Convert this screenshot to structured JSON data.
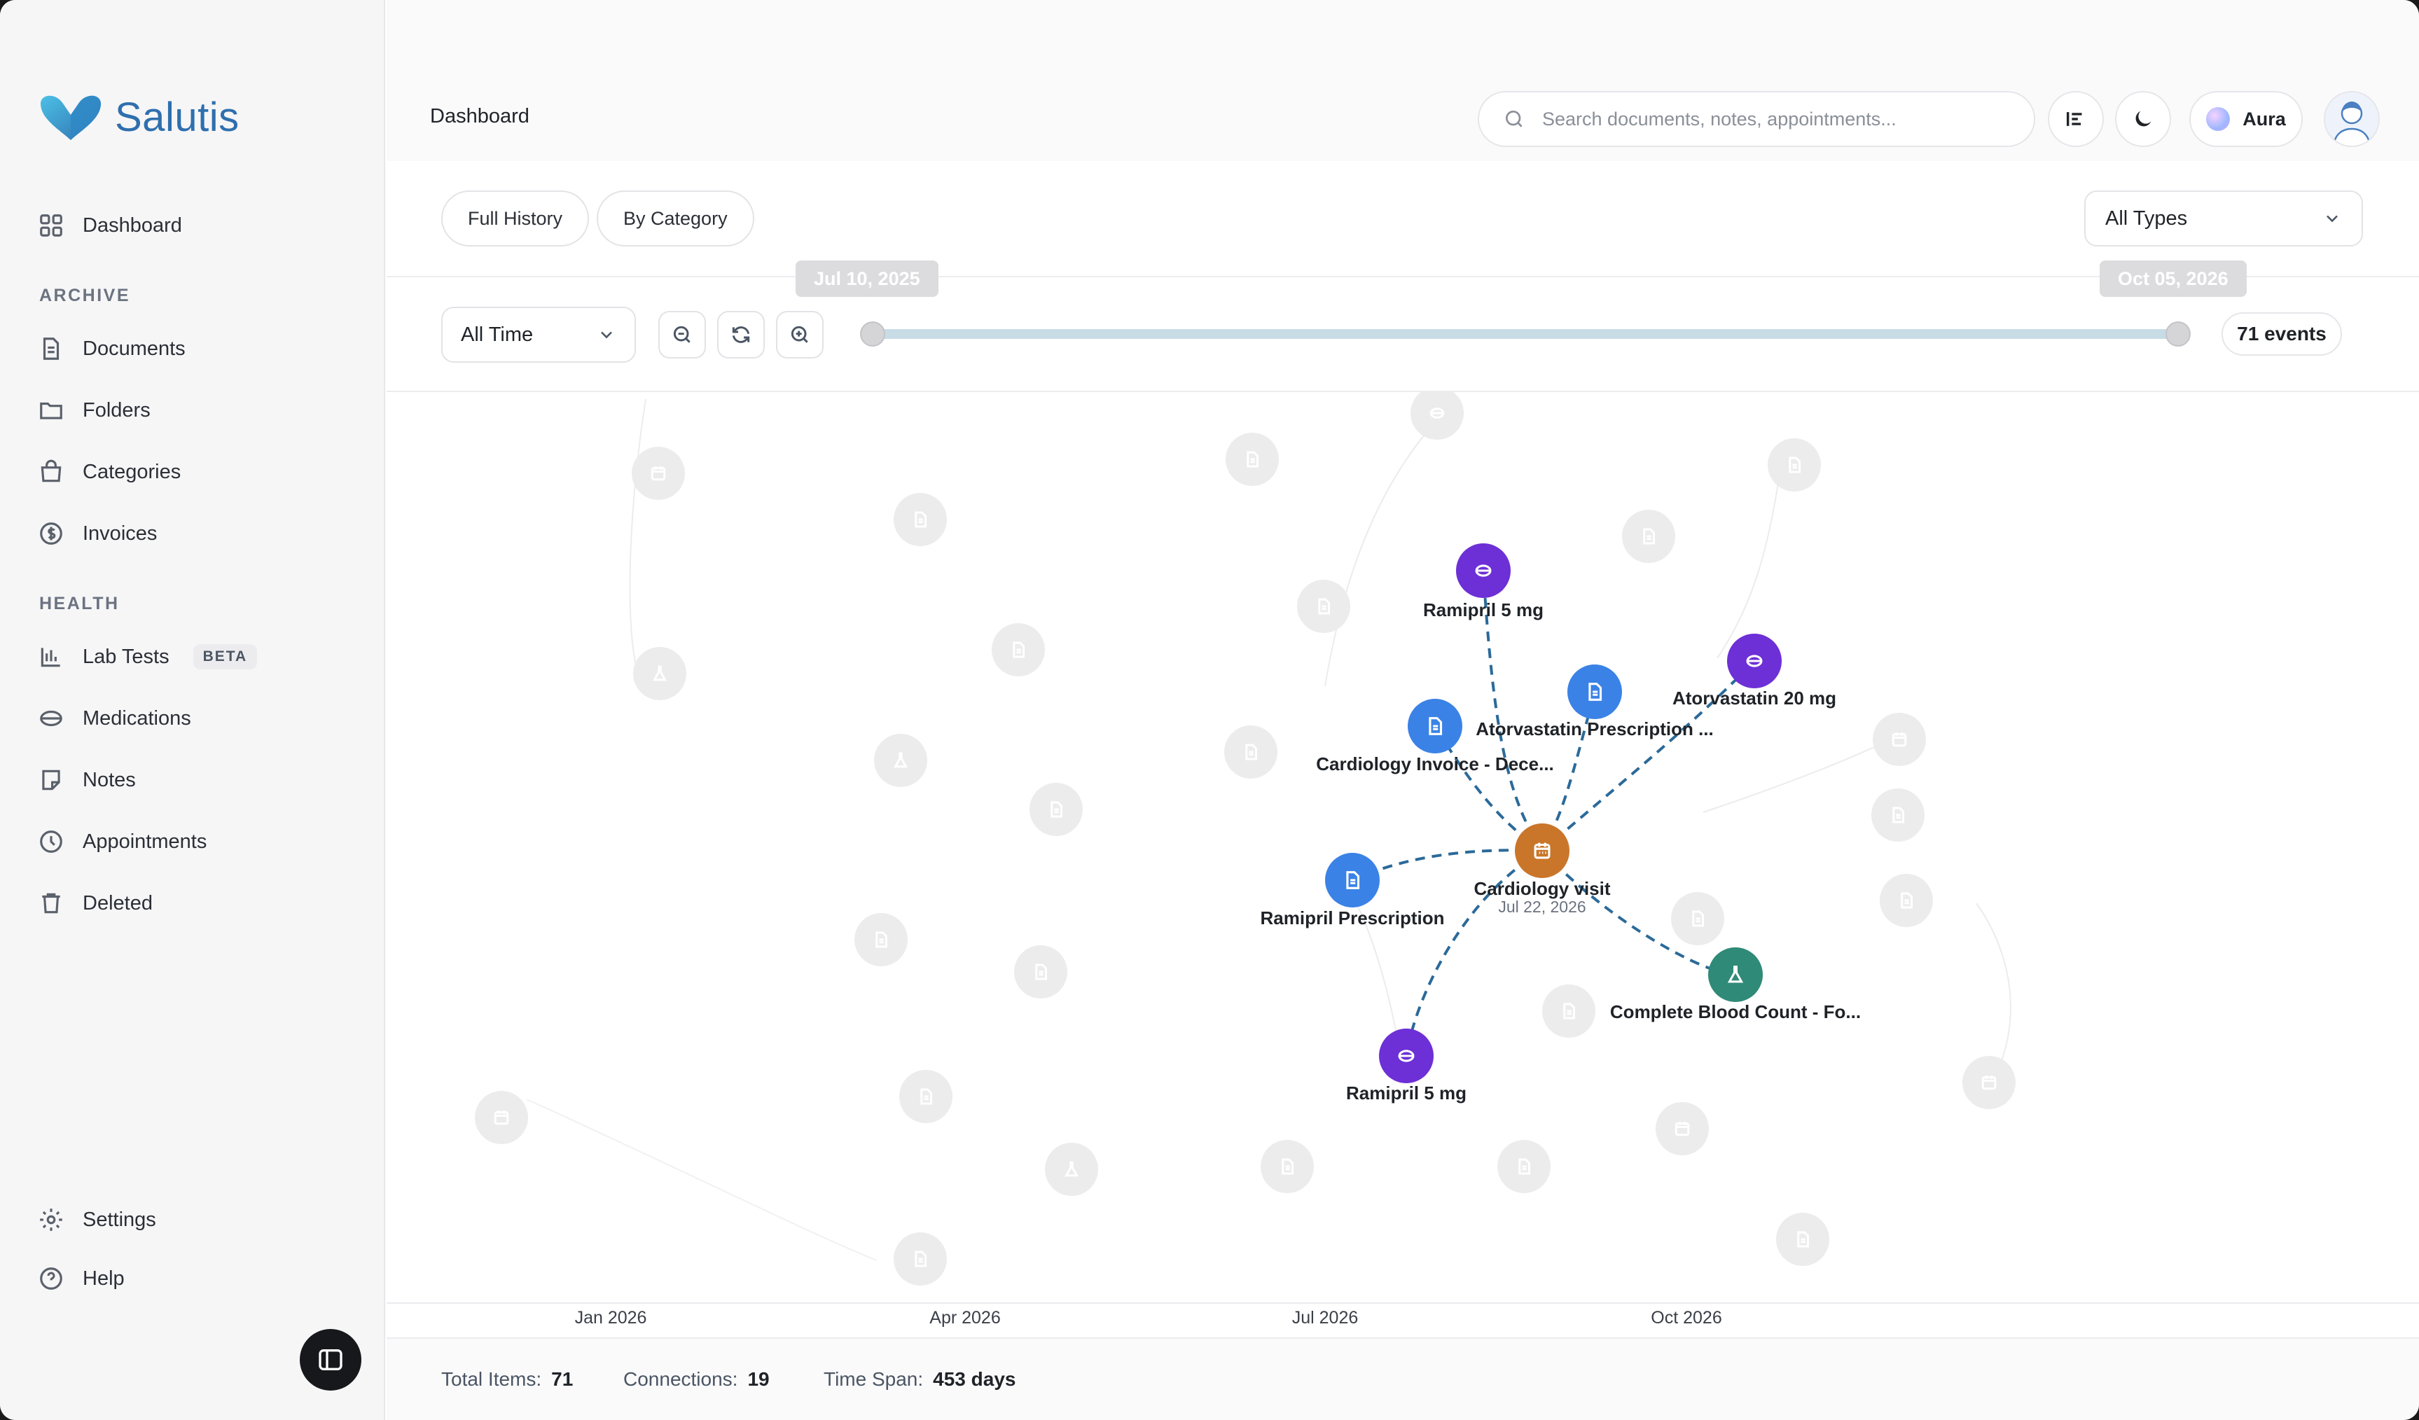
{
  "app": {
    "name": "Salutis"
  },
  "header": {
    "page_title": "Dashboard",
    "search_placeholder": "Search documents, notes, appointments...",
    "aura_label": "Aura"
  },
  "sidebar": {
    "top_items": [
      {
        "label": "Dashboard",
        "icon": "grid-icon"
      }
    ],
    "archive_label": "ARCHIVE",
    "archive_items": [
      {
        "label": "Documents",
        "icon": "document-icon"
      },
      {
        "label": "Folders",
        "icon": "folder-icon"
      },
      {
        "label": "Categories",
        "icon": "bag-icon"
      },
      {
        "label": "Invoices",
        "icon": "dollar-icon"
      }
    ],
    "health_label": "HEALTH",
    "health_items": [
      {
        "label": "Lab Tests",
        "icon": "chart-icon",
        "badge": "BETA"
      },
      {
        "label": "Medications",
        "icon": "pill-icon"
      },
      {
        "label": "Notes",
        "icon": "note-icon"
      },
      {
        "label": "Appointments",
        "icon": "clock-icon"
      },
      {
        "label": "Deleted",
        "icon": "trash-icon"
      }
    ],
    "bottom_items": [
      {
        "label": "Settings",
        "icon": "gear-icon"
      },
      {
        "label": "Help",
        "icon": "help-icon"
      }
    ]
  },
  "toolbar": {
    "full_history": "Full History",
    "by_category": "By Category",
    "types_select": "All Types",
    "time_select": "All Time",
    "range_start": "Jul 10, 2025",
    "range_end": "Oct 05, 2026",
    "events_count": "71 events"
  },
  "graph": {
    "center": {
      "label": "Cardiology visit",
      "date": "Jul 22, 2026",
      "type": "appointment",
      "color": "#c9762a"
    },
    "connected": [
      {
        "label": "Ramipril 5 mg",
        "type": "medication",
        "color": "#6d2fd6"
      },
      {
        "label": "Atorvastatin Prescription ...",
        "type": "document",
        "color": "#3b82e6"
      },
      {
        "label": "Atorvastatin 20 mg",
        "type": "medication",
        "color": "#6d2fd6"
      },
      {
        "label": "Cardiology Invoice - Dece...",
        "type": "document",
        "color": "#3b82e6"
      },
      {
        "label": "Ramipril Prescription",
        "type": "document",
        "color": "#3b82e6"
      },
      {
        "label": "Complete Blood Count - Fo...",
        "type": "lab",
        "color": "#2f8a78"
      },
      {
        "label": "Ramipril 5 mg",
        "type": "medication",
        "color": "#6d2fd6"
      }
    ],
    "axis_labels": [
      "Jan 2026",
      "Apr 2026",
      "Jul 2026",
      "Oct 2026"
    ]
  },
  "footer": {
    "total_items_label": "Total Items:",
    "total_items": "71",
    "connections_label": "Connections:",
    "connections": "19",
    "time_span_label": "Time Span:",
    "time_span": "453 days"
  }
}
